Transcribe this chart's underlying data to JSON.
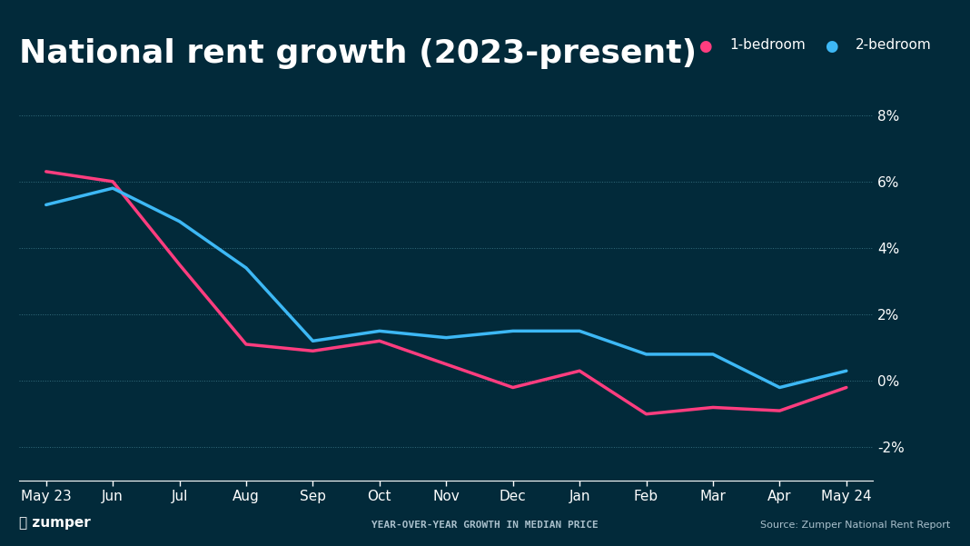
{
  "title": "National rent growth (2023-present)",
  "background_color": "#022a3a",
  "plot_bg_color": "#022a3a",
  "grid_color": "#4a7a8a",
  "line_color_1bed": "#ff3d7f",
  "line_color_2bed": "#3db8f5",
  "x_labels": [
    "May 23",
    "Jun",
    "Jul",
    "Aug",
    "Sep",
    "Oct",
    "Nov",
    "Dec",
    "Jan",
    "Feb",
    "Mar",
    "Apr",
    "May 24"
  ],
  "one_bed": [
    6.3,
    6.0,
    3.5,
    1.1,
    0.9,
    1.2,
    0.5,
    -0.2,
    0.3,
    -1.0,
    -0.8,
    -0.9,
    -0.2
  ],
  "two_bed": [
    5.3,
    5.8,
    4.8,
    3.4,
    1.2,
    1.5,
    1.3,
    1.5,
    1.5,
    0.8,
    0.8,
    -0.2,
    0.3
  ],
  "ylim": [
    -3,
    9
  ],
  "yticks": [
    -2,
    0,
    2,
    4,
    6,
    8
  ],
  "source_text": "Source: Zumper National Rent Report",
  "footer_center": "YEAR-OVER-YEAR GROWTH IN MEDIAN PRICE",
  "legend_1bed": "1-bedroom",
  "legend_2bed": "2-bedroom",
  "title_fontsize": 26,
  "axis_label_fontsize": 11,
  "line_width": 2.5
}
